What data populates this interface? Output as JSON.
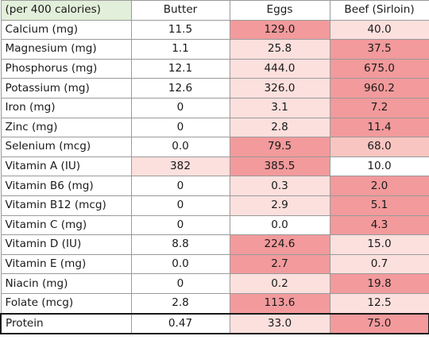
{
  "heatmap": {
    "none": "#ffffff",
    "light": "#fce0dd",
    "mid": "#f9c5c1",
    "strong": "#f29a9c"
  },
  "header": {
    "corner": "(per 400 calories)",
    "columns": [
      "Butter",
      "Eggs",
      "Beef (Sirloin)"
    ]
  },
  "rows": [
    {
      "nutrient": "Calcium (mg)",
      "values": [
        "11.5",
        "129.0",
        "40.0"
      ],
      "shade": [
        "none",
        "strong",
        "light"
      ]
    },
    {
      "nutrient": "Magnesium (mg)",
      "values": [
        "1.1",
        "25.8",
        "37.5"
      ],
      "shade": [
        "none",
        "light",
        "strong"
      ]
    },
    {
      "nutrient": "Phosphorus (mg)",
      "values": [
        "12.1",
        "444.0",
        "675.0"
      ],
      "shade": [
        "none",
        "light",
        "strong"
      ]
    },
    {
      "nutrient": "Potassium (mg)",
      "values": [
        "12.6",
        "326.0",
        "960.2"
      ],
      "shade": [
        "none",
        "light",
        "strong"
      ]
    },
    {
      "nutrient": "Iron (mg)",
      "values": [
        "0",
        "3.1",
        "7.2"
      ],
      "shade": [
        "none",
        "light",
        "strong"
      ]
    },
    {
      "nutrient": "Zinc (mg)",
      "values": [
        "0",
        "2.8",
        "11.4"
      ],
      "shade": [
        "none",
        "light",
        "strong"
      ]
    },
    {
      "nutrient": "Selenium (mcg)",
      "values": [
        "0.0",
        "79.5",
        "68.0"
      ],
      "shade": [
        "none",
        "strong",
        "mid"
      ]
    },
    {
      "nutrient": "Vitamin A (IU)",
      "values": [
        "382",
        "385.5",
        "10.0"
      ],
      "shade": [
        "light",
        "strong",
        "none"
      ]
    },
    {
      "nutrient": "Vitamin B6 (mg)",
      "values": [
        "0",
        "0.3",
        "2.0"
      ],
      "shade": [
        "none",
        "light",
        "strong"
      ]
    },
    {
      "nutrient": "Vitamin B12 (mcg)",
      "values": [
        "0",
        "2.9",
        "5.1"
      ],
      "shade": [
        "none",
        "light",
        "strong"
      ]
    },
    {
      "nutrient": "Vitamin C (mg)",
      "values": [
        "0",
        "0.0",
        "4.3"
      ],
      "shade": [
        "none",
        "none",
        "strong"
      ]
    },
    {
      "nutrient": "Vitamin D (IU)",
      "values": [
        "8.8",
        "224.6",
        "15.0"
      ],
      "shade": [
        "none",
        "strong",
        "light"
      ]
    },
    {
      "nutrient": "Vitamin E (mg)",
      "values": [
        "0.0",
        "2.7",
        "0.7"
      ],
      "shade": [
        "none",
        "strong",
        "light"
      ]
    },
    {
      "nutrient": "Niacin (mg)",
      "values": [
        "0",
        "0.2",
        "19.8"
      ],
      "shade": [
        "none",
        "light",
        "strong"
      ]
    },
    {
      "nutrient": "Folate (mcg)",
      "values": [
        "2.8",
        "113.6",
        "12.5"
      ],
      "shade": [
        "none",
        "strong",
        "light"
      ]
    },
    {
      "nutrient": "Protein",
      "values": [
        "0.47",
        "33.0",
        "75.0"
      ],
      "shade": [
        "none",
        "light",
        "strong"
      ]
    }
  ]
}
